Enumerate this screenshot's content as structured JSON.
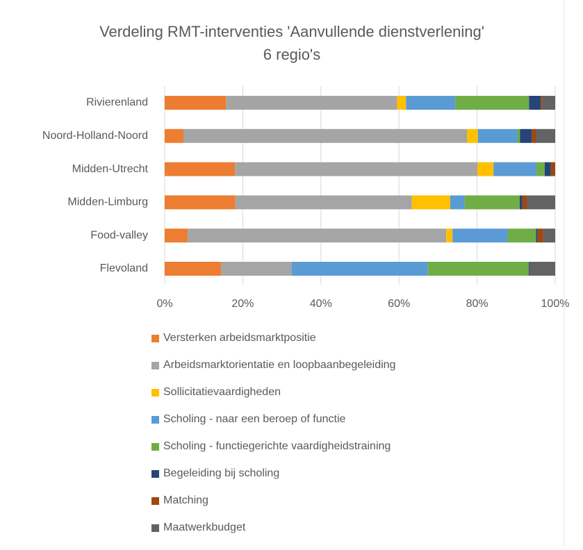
{
  "chart_data": {
    "type": "bar",
    "orientation": "horizontal",
    "stacked": true,
    "title_lines": [
      "Verdeling RMT-interventies 'Aanvullende dienstverlening'",
      "6 regio's"
    ],
    "categories": [
      "Rivierenland",
      "Noord-Holland-Noord",
      "Midden-Utrecht",
      "Midden-Limburg",
      "Food-valley",
      "Flevoland"
    ],
    "series": [
      {
        "name": "Versterken arbeidsmarktpositie",
        "color": "#ed7d31",
        "values": [
          15.7,
          4.8,
          18.0,
          18.1,
          5.9,
          14.4
        ]
      },
      {
        "name": "Arbeidsmarktorientatie en loopbaanbegeleiding",
        "color": "#a5a5a5",
        "values": [
          43.8,
          72.6,
          62.1,
          45.2,
          66.2,
          18.1
        ]
      },
      {
        "name": "Sollicitatievaardigheden",
        "color": "#ffc000",
        "values": [
          2.3,
          2.8,
          4.1,
          9.8,
          1.6,
          0
        ]
      },
      {
        "name": "Scholing - naar een beroep of functie",
        "color": "#5b9bd5",
        "values": [
          12.6,
          10.1,
          11.0,
          3.7,
          14.1,
          34.9
        ]
      },
      {
        "name": "Scholing - functiegerichte vaardigheidstraining",
        "color": "#70ad47",
        "values": [
          18.9,
          0.7,
          2.1,
          14.1,
          7.3,
          25.8
        ]
      },
      {
        "name": "Begeleiding bij scholing",
        "color": "#264478",
        "values": [
          3.0,
          3.0,
          1.6,
          0.7,
          0.4,
          0.2
        ]
      },
      {
        "name": "Matching",
        "color": "#9e480e",
        "values": [
          0.4,
          1.1,
          1.1,
          1.2,
          1.4,
          0
        ]
      },
      {
        "name": "Maatwerkbudget",
        "color": "#636363",
        "values": [
          3.3,
          4.9,
          0,
          7.2,
          3.1,
          6.6
        ]
      }
    ],
    "xlim": [
      0,
      100
    ],
    "xticks": [
      {
        "value": 0,
        "label": "0%"
      },
      {
        "value": 20,
        "label": "20%"
      },
      {
        "value": 40,
        "label": "40%"
      },
      {
        "value": 60,
        "label": "60%"
      },
      {
        "value": 80,
        "label": "80%"
      },
      {
        "value": 100,
        "label": "100%"
      }
    ],
    "grid": true
  }
}
